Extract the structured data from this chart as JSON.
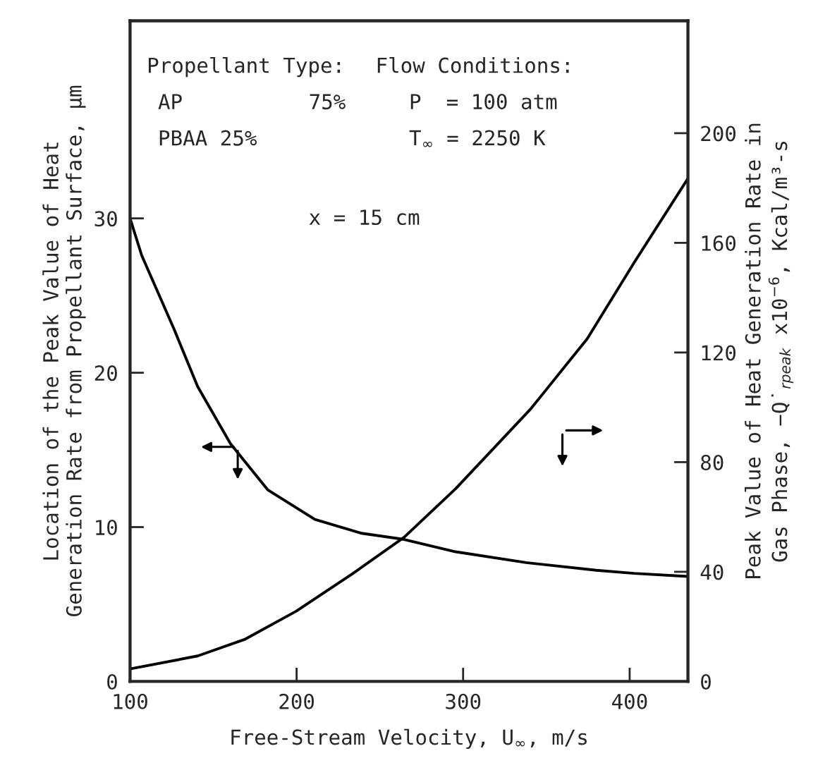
{
  "chart_data": {
    "type": "line",
    "xlabel": "Free-Stream Velocity, U$_{∞}$, m/s",
    "ylabel": "Location of the Peak Value of Heat\nGeneration Rate from Propellant Surface, μm",
    "y2label": "Peak Value of Heat Generation Rate in\nGas Phase, −Q̇$_{rpeak}$ x10$^{−6}$, Kcal/m³-s",
    "annotations": [
      "Propellant Type:",
      "AP",
      "75%",
      "PBAA 25%",
      "Flow Conditions:",
      "P  = 100 atm",
      "T$_{∞}$ = 2250 K",
      "x = 15 cm"
    ],
    "series": [
      {
        "color": "#000000",
        "x": [
          100,
          107,
          126.5,
          140.6,
          160.3,
          182.8,
          211,
          239,
          264.6,
          295.5,
          337.8,
          380,
          402.6,
          435
        ],
        "values": [
          30,
          27.6,
          22.8,
          19.1,
          15.4,
          12.4,
          10.5,
          9.6,
          9.2,
          8.4,
          7.7,
          7.2,
          7.0,
          6.8
        ]
      },
      {
        "color": "#000000",
        "axis": "y2",
        "x": [
          100,
          140.6,
          168.7,
          199.7,
          233.6,
          264.6,
          295.5,
          340.7,
          374.5,
          402.6,
          435
        ],
        "values": [
          4.6,
          9.3,
          15.3,
          25.6,
          39.3,
          52.6,
          70.3,
          99.5,
          125,
          152.7,
          183.5
        ]
      }
    ],
    "xlim": [
      100,
      435
    ],
    "xticks": [
      100,
      200,
      300,
      400
    ],
    "ylim": [
      0,
      42.8
    ],
    "yticks": [
      0,
      10,
      20,
      30
    ],
    "y2lim": [
      0,
      241
    ],
    "y2ticks": [
      0,
      40,
      80,
      120,
      160,
      200
    ],
    "grid": false,
    "legend": false,
    "line_style": "solid",
    "marker": "none"
  }
}
